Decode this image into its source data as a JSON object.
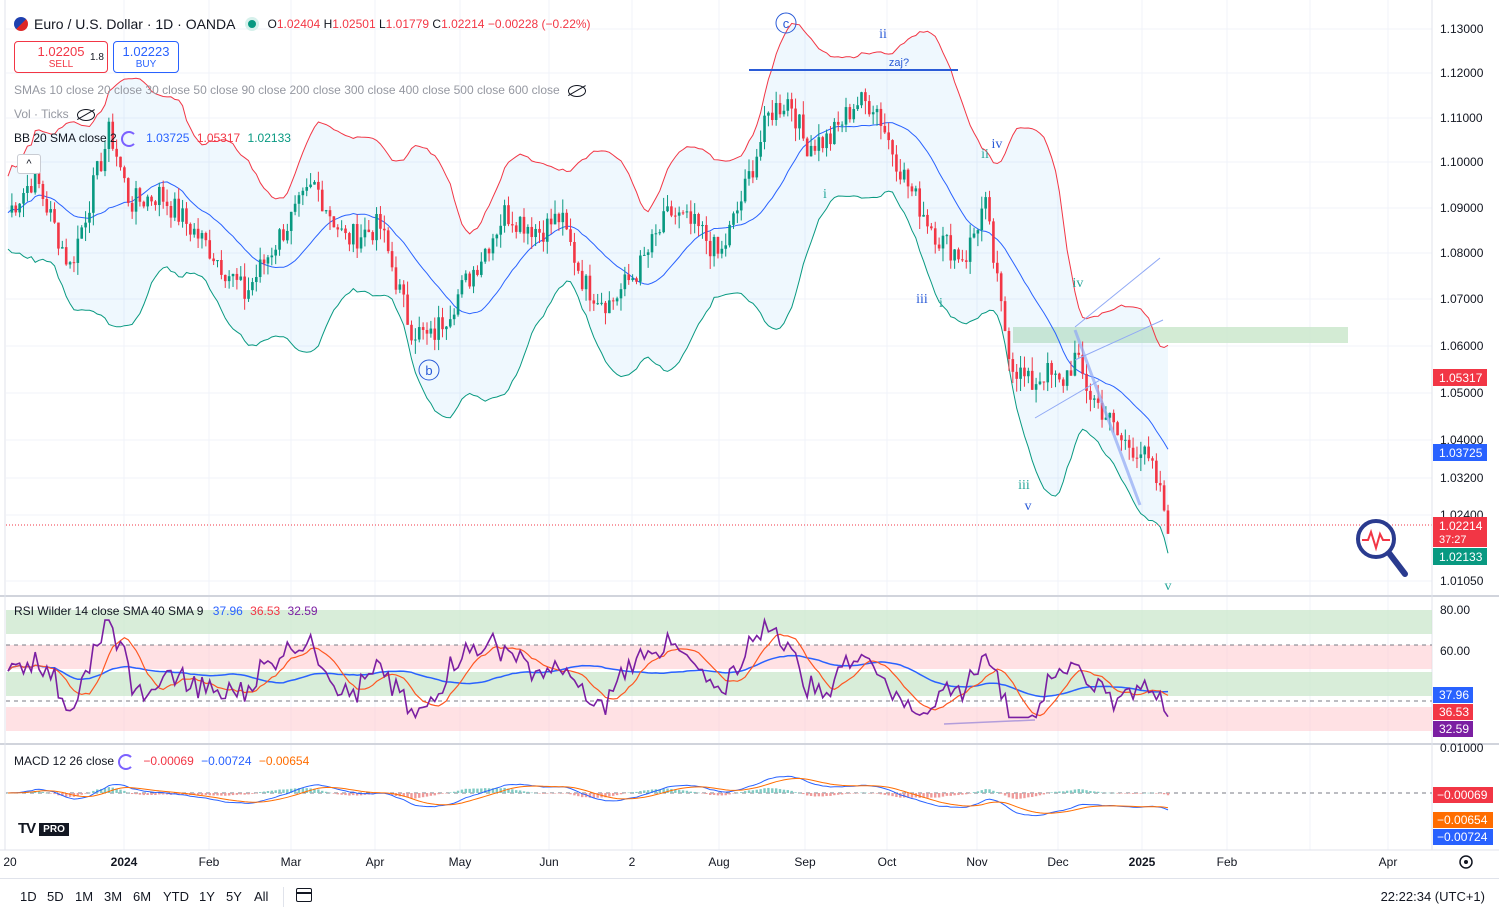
{
  "header": {
    "symbol_title": "Euro / U.S. Dollar · 1D · OANDA",
    "open_label": "O",
    "open": "1.02404",
    "high_label": "H",
    "high": "1.02501",
    "low_label": "L",
    "low": "1.01779",
    "close_label": "C",
    "close": "1.02214",
    "change": "−0.00228 (−0.22%)",
    "flag_icon": "eurusd-flag-icon",
    "market_status_icon": "market-open-dot-icon"
  },
  "trade": {
    "sell_price": "1.02205",
    "sell_label": "SELL",
    "spread": "1.8",
    "buy_price": "1.02223",
    "buy_label": "BUY"
  },
  "indicators": {
    "smas": "SMAs 10 close 20 close 30 close 50 close 90 close 200 close 300 close 400 close 500 close 600 close",
    "vol": "Vol · Ticks",
    "bb_label": "BB 20 SMA close 2",
    "bb_basis": "1.03725",
    "bb_upper": "1.05317",
    "bb_lower": "1.02133",
    "collapse_glyph": "^",
    "rsi_label": "RSI Wilder 14 close SMA 40 SMA 9",
    "rsi_v1": "37.96",
    "rsi_v2": "36.53",
    "rsi_v3": "32.59",
    "macd_label": "MACD 12 26 close",
    "macd_v1": "−0.00069",
    "macd_v2": "−0.00724",
    "macd_v3": "−0.00654"
  },
  "price_axis": {
    "ticks": [
      "1.13000",
      "1.12000",
      "1.11000",
      "1.10000",
      "1.09000",
      "1.08000",
      "1.07000",
      "1.06000",
      "1.05000",
      "1.04000",
      "1.03200",
      "1.02400",
      "1.01050"
    ],
    "badges": {
      "upper": "1.05317",
      "basis": "1.03725",
      "last": "1.02214",
      "countdown": "37:27",
      "lower": "1.02133"
    }
  },
  "rsi_axis": {
    "ticks": [
      "80.00",
      "60.00"
    ],
    "badges": [
      "37.96",
      "36.53",
      "32.59"
    ]
  },
  "macd_axis": {
    "ticks": [
      "0.01000"
    ],
    "badges": [
      "−0.00069",
      "−0.00654",
      "−0.00724"
    ]
  },
  "time_axis": {
    "labels": [
      "20",
      "2024",
      "Feb",
      "Mar",
      "Apr",
      "May",
      "Jun",
      "2",
      "Aug",
      "Sep",
      "Oct",
      "Nov",
      "Dec",
      "2025",
      "Feb",
      "Apr"
    ],
    "settings_icon": "gear-icon"
  },
  "waves": {
    "c": "c",
    "b": "b",
    "ii": "ii",
    "zaj": "zaj?",
    "iv_1": "iv",
    "ii_2": "ii",
    "i_1": "i",
    "iii_1": "iii",
    "i_2": "i",
    "iv_2": "iv",
    "iii_2": "iii",
    "v_1": "v",
    "v_2": "v"
  },
  "bottom_bar": {
    "timeframes": [
      "1D",
      "5D",
      "1M",
      "3M",
      "6M",
      "YTD",
      "1Y",
      "5Y",
      "All"
    ],
    "clock": "22:22:34 (UTC+1)",
    "calendar_icon": "calendar-icon"
  },
  "logo": {
    "text": "TV",
    "badge": "PRO"
  },
  "colors": {
    "up": "#089981",
    "down": "#f23645",
    "bb_upper": "#f23645",
    "bb_basis": "#2962ff",
    "bb_lower": "#089981",
    "rsi": "#7b1fa2",
    "rsi_ma1": "#2962ff",
    "rsi_ma2": "#ff6d00"
  }
}
